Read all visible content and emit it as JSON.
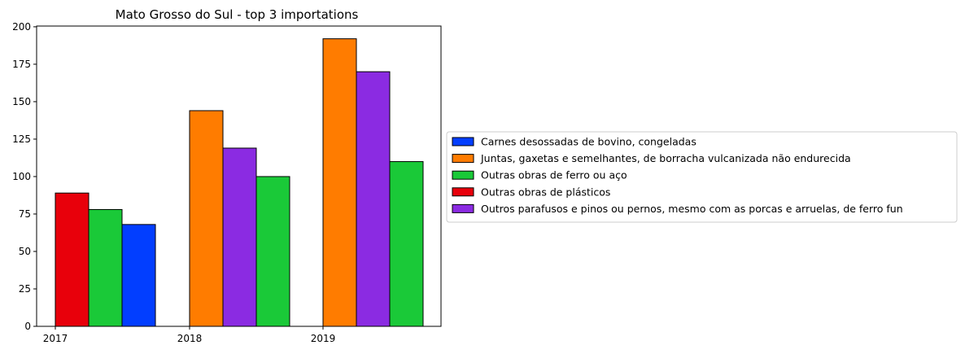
{
  "chart_data": {
    "type": "bar",
    "title": "Mato Grosso do Sul - top 3 importations",
    "xlabel": "",
    "ylabel": "",
    "ylim": [
      0,
      200
    ],
    "yticks": [
      0,
      25,
      50,
      75,
      100,
      125,
      150,
      175,
      200
    ],
    "categories": [
      "2017",
      "2018",
      "2019"
    ],
    "legend_position": "center-right, outside plot",
    "grid": false,
    "groups": [
      {
        "category": "2017",
        "bars": [
          {
            "series": "Outras obras de plásticos",
            "value": 89
          },
          {
            "series": "Outras obras de ferro ou aço",
            "value": 78
          },
          {
            "series": "Carnes desossadas de bovino, congeladas",
            "value": 68
          }
        ]
      },
      {
        "category": "2018",
        "bars": [
          {
            "series": "Juntas, gaxetas e semelhantes, de borracha vulcanizada não endurecida",
            "value": 144
          },
          {
            "series": "Outros parafusos e pinos ou pernos, mesmo com as porcas e arruelas, de ferro fun",
            "value": 119
          },
          {
            "series": "Outras obras de ferro ou aço",
            "value": 100
          }
        ]
      },
      {
        "category": "2019",
        "bars": [
          {
            "series": "Juntas, gaxetas e semelhantes, de borracha vulcanizada não endurecida",
            "value": 192
          },
          {
            "series": "Outros parafusos e pinos ou pernos, mesmo com as porcas e arruelas, de ferro fun",
            "value": 170
          },
          {
            "series": "Outras obras de ferro ou aço",
            "value": 110
          }
        ]
      }
    ],
    "series": [
      {
        "name": "Carnes desossadas de bovino, congeladas",
        "color": "#023eff"
      },
      {
        "name": "Juntas, gaxetas e semelhantes, de borracha vulcanizada não endurecida",
        "color": "#ff7c00"
      },
      {
        "name": "Outras obras de ferro ou aço",
        "color": "#1ac938"
      },
      {
        "name": "Outras obras de plásticos",
        "color": "#e8000b"
      },
      {
        "name": "Outros parafusos e pinos ou pernos, mesmo com as porcas e arruelas, de ferro fun",
        "color": "#8b2be2"
      }
    ]
  }
}
